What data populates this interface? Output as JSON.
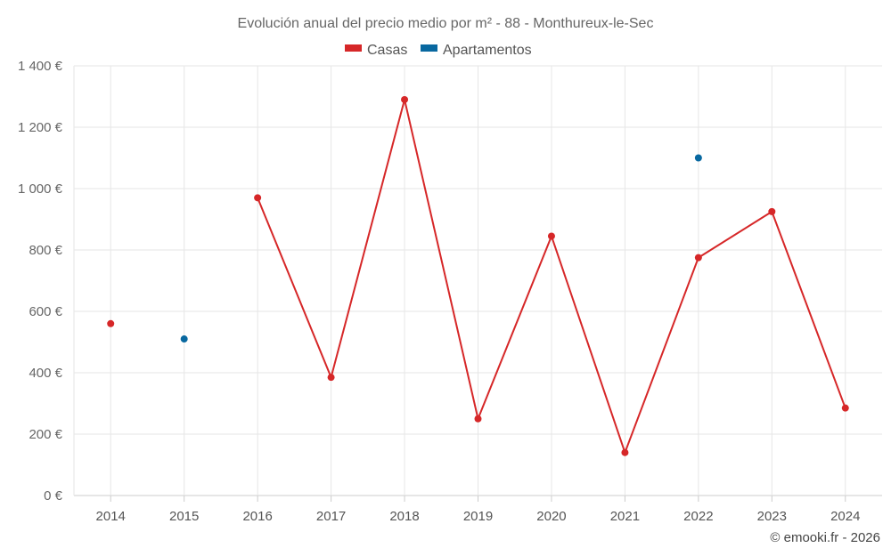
{
  "chart_data": {
    "type": "line",
    "title": "Evolución anual del precio medio por m² - 88 - Monthureux-le-Sec",
    "categories": [
      "2014",
      "2015",
      "2016",
      "2017",
      "2018",
      "2019",
      "2020",
      "2021",
      "2022",
      "2023",
      "2024"
    ],
    "series": [
      {
        "name": "Casas",
        "color": "#d62728",
        "values": [
          560,
          null,
          970,
          385,
          1290,
          250,
          845,
          140,
          775,
          925,
          285
        ]
      },
      {
        "name": "Apartamentos",
        "color": "#0868a0",
        "values": [
          null,
          510,
          null,
          null,
          null,
          null,
          null,
          null,
          1100,
          null,
          null
        ]
      }
    ],
    "ylim": [
      0,
      1400
    ],
    "yticks": [
      0,
      200,
      400,
      600,
      800,
      1000,
      1200,
      1400
    ],
    "ytick_labels": [
      "0 €",
      "200 €",
      "400 €",
      "600 €",
      "800 €",
      "1 000 €",
      "1 200 €",
      "1 400 €"
    ],
    "xlabel": "",
    "ylabel": "",
    "grid": true,
    "legend_position": "top-center"
  },
  "credit": "© emooki.fr - 2026"
}
